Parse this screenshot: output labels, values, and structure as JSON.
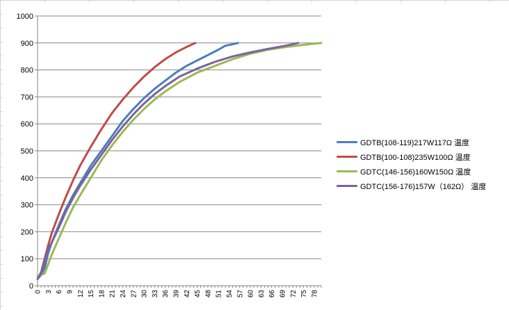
{
  "chart_data": {
    "type": "line",
    "title": "",
    "xlabel": "",
    "ylabel": "",
    "ylim": [
      0,
      1000
    ],
    "xlim": [
      0,
      80
    ],
    "yticks": [
      "0",
      "100",
      "200",
      "300",
      "400",
      "500",
      "600",
      "700",
      "800",
      "900",
      "1000"
    ],
    "xticks": [
      "0",
      "3",
      "6",
      "9",
      "12",
      "15",
      "18",
      "21",
      "24",
      "27",
      "30",
      "33",
      "36",
      "39",
      "42",
      "45",
      "48",
      "51",
      "54",
      "57",
      "60",
      "63",
      "66",
      "69",
      "72",
      "75",
      "78"
    ],
    "grid": "horizontal",
    "legend_position": "right",
    "series": [
      {
        "name": "GDTB(108-119)217W117Ω 温度",
        "color": "#4a7ebb",
        "x": [
          0,
          1,
          2,
          3,
          4,
          6,
          8,
          10,
          12,
          15,
          18,
          21,
          24,
          27,
          30,
          33,
          36,
          39,
          42,
          45,
          48,
          51,
          53,
          55,
          56.5
        ],
        "y": [
          25,
          40,
          65,
          120,
          160,
          225,
          285,
          335,
          380,
          445,
          500,
          555,
          610,
          655,
          695,
          730,
          760,
          790,
          815,
          835,
          855,
          875,
          890,
          895,
          900
        ]
      },
      {
        "name": "GDTB(100-108)235W100Ω 温度",
        "color": "#be4b48",
        "x": [
          0,
          1,
          2,
          3,
          4,
          6,
          8,
          10,
          12,
          15,
          18,
          21,
          24,
          27,
          30,
          33,
          36,
          39,
          42,
          44.5
        ],
        "y": [
          25,
          50,
          100,
          150,
          195,
          265,
          330,
          390,
          445,
          515,
          580,
          640,
          690,
          735,
          775,
          810,
          840,
          865,
          885,
          900
        ]
      },
      {
        "name": "GDTC(146-156)160W150Ω 温度",
        "color": "#98b954",
        "x": [
          0,
          1,
          2,
          3,
          4,
          6,
          8,
          10,
          12,
          15,
          18,
          21,
          24,
          27,
          30,
          33,
          36,
          40,
          45,
          50,
          55,
          60,
          65,
          70,
          75,
          80
        ],
        "y": [
          35,
          40,
          45,
          80,
          115,
          175,
          235,
          290,
          335,
          400,
          465,
          520,
          570,
          615,
          655,
          690,
          720,
          755,
          790,
          815,
          840,
          860,
          875,
          885,
          893,
          900
        ]
      },
      {
        "name": "GDTC(156-176)157W（162Ω） 温度",
        "color": "#7d60a0",
        "x": [
          0,
          1,
          2,
          3,
          4,
          6,
          8,
          10,
          12,
          15,
          18,
          21,
          24,
          27,
          30,
          33,
          36,
          40,
          45,
          50,
          55,
          60,
          65,
          70,
          73.5
        ],
        "y": [
          25,
          45,
          90,
          135,
          160,
          215,
          275,
          325,
          370,
          430,
          485,
          540,
          590,
          635,
          675,
          710,
          740,
          775,
          805,
          830,
          850,
          865,
          878,
          890,
          900
        ]
      }
    ]
  }
}
